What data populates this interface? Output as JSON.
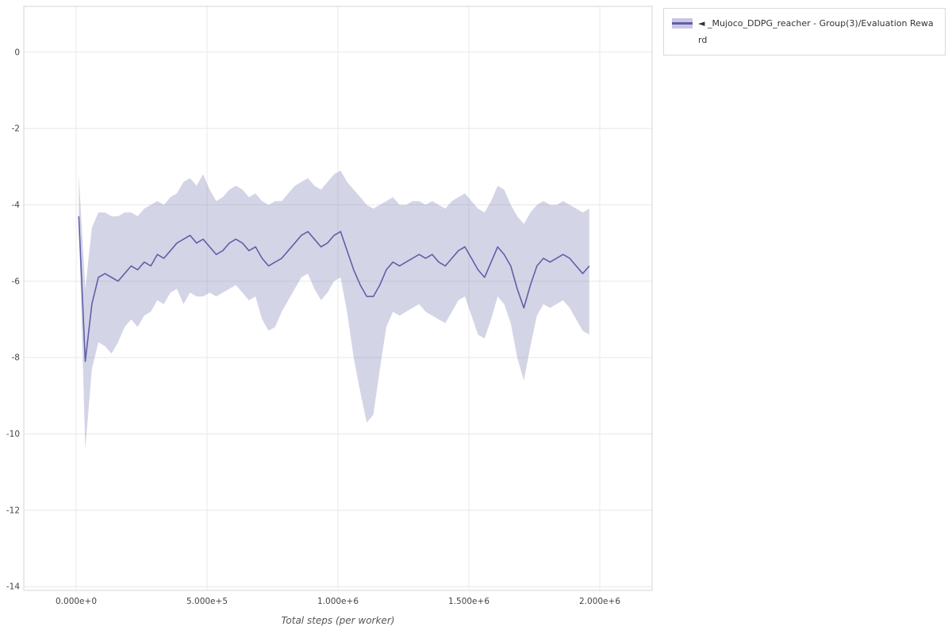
{
  "page": {
    "background": "#ffffff"
  },
  "legend": {
    "label": "◄ _Mujoco_DDPG_reacher - Group(3)/Evaluation Reward",
    "swatch_band_color": "#c9c7e4",
    "swatch_line_color": "#615fa8"
  },
  "chart_data": {
    "type": "line",
    "title": "",
    "xlabel": "Total steps (per worker)",
    "ylabel": "",
    "xlim": [
      -200000,
      2200000
    ],
    "ylim": [
      -14.1,
      1.2
    ],
    "grid": true,
    "legend_position": "top-right-outside",
    "x_ticks": [
      {
        "value": 0,
        "label": "0.000e+0"
      },
      {
        "value": 500000,
        "label": "5.000e+5"
      },
      {
        "value": 1000000,
        "label": "1.000e+6"
      },
      {
        "value": 1500000,
        "label": "1.500e+6"
      },
      {
        "value": 2000000,
        "label": "2.000e+6"
      }
    ],
    "y_ticks": [
      {
        "value": 0,
        "label": "0"
      },
      {
        "value": -2,
        "label": "-2"
      },
      {
        "value": -4,
        "label": "-4"
      },
      {
        "value": -6,
        "label": "-6"
      },
      {
        "value": -8,
        "label": "-8"
      },
      {
        "value": -10,
        "label": "-10"
      },
      {
        "value": -12,
        "label": "-12"
      },
      {
        "value": -14,
        "label": "-14"
      }
    ],
    "series": [
      {
        "name": "_Mujoco_DDPG_reacher - Group(3)/Evaluation Reward",
        "color": "#615fa8",
        "band_color": "rgba(101,100,168,0.28)",
        "x": [
          10000,
          35000,
          60000,
          85000,
          110000,
          135000,
          160000,
          185000,
          210000,
          235000,
          260000,
          285000,
          310000,
          335000,
          360000,
          385000,
          410000,
          435000,
          460000,
          485000,
          510000,
          535000,
          560000,
          585000,
          610000,
          635000,
          660000,
          685000,
          710000,
          735000,
          760000,
          785000,
          810000,
          835000,
          860000,
          885000,
          910000,
          935000,
          960000,
          985000,
          1010000,
          1035000,
          1060000,
          1085000,
          1110000,
          1135000,
          1160000,
          1185000,
          1210000,
          1235000,
          1260000,
          1285000,
          1310000,
          1335000,
          1360000,
          1385000,
          1410000,
          1435000,
          1460000,
          1485000,
          1510000,
          1535000,
          1560000,
          1585000,
          1610000,
          1635000,
          1660000,
          1685000,
          1710000,
          1735000,
          1760000,
          1785000,
          1810000,
          1835000,
          1860000,
          1885000,
          1910000,
          1935000,
          1960000
        ],
        "mean": [
          -4.3,
          -8.1,
          -6.6,
          -5.9,
          -5.8,
          -5.9,
          -6.0,
          -5.8,
          -5.6,
          -5.7,
          -5.5,
          -5.6,
          -5.3,
          -5.4,
          -5.2,
          -5.0,
          -4.9,
          -4.8,
          -5.0,
          -4.9,
          -5.1,
          -5.3,
          -5.2,
          -5.0,
          -4.9,
          -5.0,
          -5.2,
          -5.1,
          -5.4,
          -5.6,
          -5.5,
          -5.4,
          -5.2,
          -5.0,
          -4.8,
          -4.7,
          -4.9,
          -5.1,
          -5.0,
          -4.8,
          -4.7,
          -5.2,
          -5.7,
          -6.1,
          -6.4,
          -6.4,
          -6.1,
          -5.7,
          -5.5,
          -5.6,
          -5.5,
          -5.4,
          -5.3,
          -5.4,
          -5.3,
          -5.5,
          -5.6,
          -5.4,
          -5.2,
          -5.1,
          -5.4,
          -5.7,
          -5.9,
          -5.5,
          -5.1,
          -5.3,
          -5.6,
          -6.2,
          -6.7,
          -6.1,
          -5.6,
          -5.4,
          -5.5,
          -5.4,
          -5.3,
          -5.4,
          -5.6,
          -5.8,
          -5.6
        ],
        "lower": [
          -4.4,
          -10.4,
          -8.3,
          -7.6,
          -7.7,
          -7.9,
          -7.6,
          -7.2,
          -7.0,
          -7.2,
          -6.9,
          -6.8,
          -6.5,
          -6.6,
          -6.3,
          -6.2,
          -6.6,
          -6.3,
          -6.4,
          -6.4,
          -6.3,
          -6.4,
          -6.3,
          -6.2,
          -6.1,
          -6.3,
          -6.5,
          -6.4,
          -7.0,
          -7.3,
          -7.2,
          -6.8,
          -6.5,
          -6.2,
          -5.9,
          -5.8,
          -6.2,
          -6.5,
          -6.3,
          -6.0,
          -5.9,
          -6.8,
          -8.0,
          -8.9,
          -9.7,
          -9.5,
          -8.3,
          -7.2,
          -6.8,
          -6.9,
          -6.8,
          -6.7,
          -6.6,
          -6.8,
          -6.9,
          -7.0,
          -7.1,
          -6.8,
          -6.5,
          -6.4,
          -6.9,
          -7.4,
          -7.5,
          -7.0,
          -6.4,
          -6.6,
          -7.1,
          -8.0,
          -8.6,
          -7.7,
          -6.9,
          -6.6,
          -6.7,
          -6.6,
          -6.5,
          -6.7,
          -7.0,
          -7.3,
          -7.4
        ],
        "upper": [
          -3.2,
          -6.2,
          -4.6,
          -4.2,
          -4.2,
          -4.3,
          -4.3,
          -4.2,
          -4.2,
          -4.3,
          -4.1,
          -4.0,
          -3.9,
          -4.0,
          -3.8,
          -3.7,
          -3.4,
          -3.3,
          -3.5,
          -3.2,
          -3.6,
          -3.9,
          -3.8,
          -3.6,
          -3.5,
          -3.6,
          -3.8,
          -3.7,
          -3.9,
          -4.0,
          -3.9,
          -3.9,
          -3.7,
          -3.5,
          -3.4,
          -3.3,
          -3.5,
          -3.6,
          -3.4,
          -3.2,
          -3.1,
          -3.4,
          -3.6,
          -3.8,
          -4.0,
          -4.1,
          -4.0,
          -3.9,
          -3.8,
          -4.0,
          -4.0,
          -3.9,
          -3.9,
          -4.0,
          -3.9,
          -4.0,
          -4.1,
          -3.9,
          -3.8,
          -3.7,
          -3.9,
          -4.1,
          -4.2,
          -3.9,
          -3.5,
          -3.6,
          -4.0,
          -4.3,
          -4.5,
          -4.2,
          -4.0,
          -3.9,
          -4.0,
          -4.0,
          -3.9,
          -4.0,
          -4.1,
          -4.2,
          -4.1
        ]
      }
    ]
  }
}
